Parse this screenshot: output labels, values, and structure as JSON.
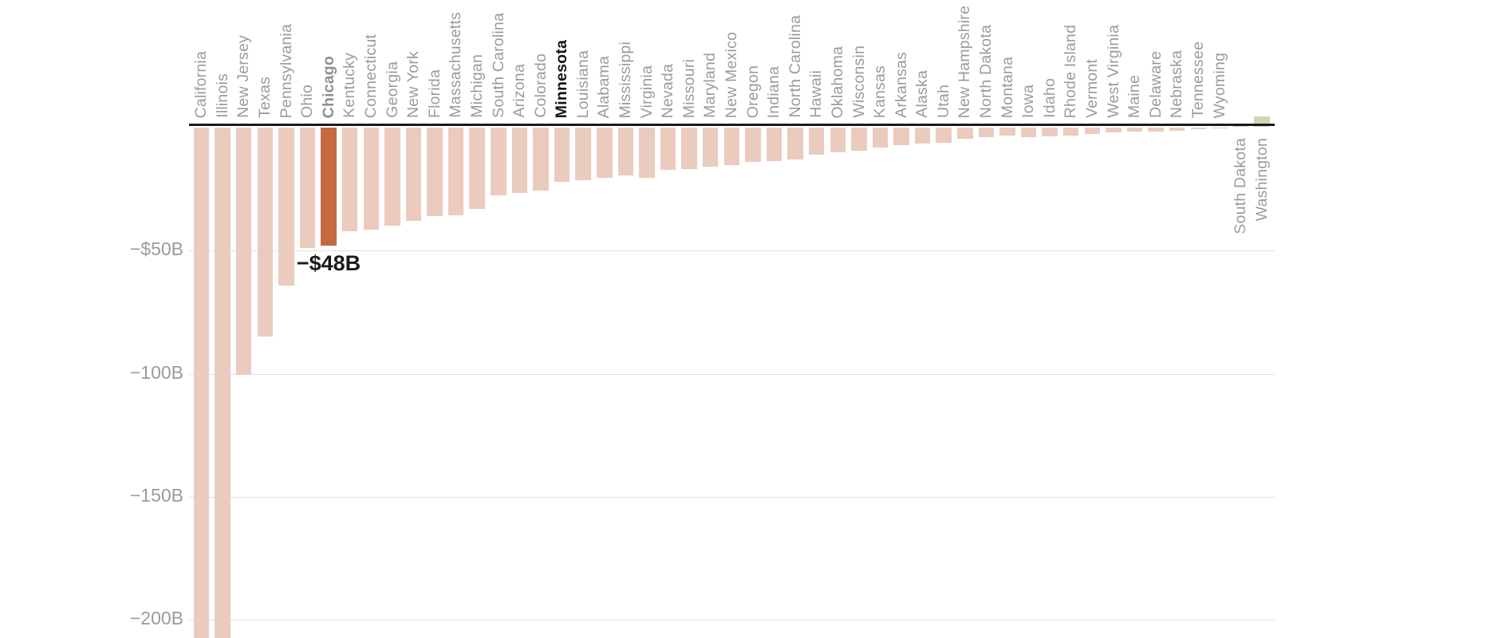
{
  "chart_data": {
    "type": "bar",
    "unit": "USD billions",
    "categories": [
      "California",
      "Illinois",
      "New Jersey",
      "Texas",
      "Pennsylvania",
      "Ohio",
      "Chicago",
      "Kentucky",
      "Connecticut",
      "Georgia",
      "New York",
      "Florida",
      "Massachusetts",
      "Michigan",
      "South Carolina",
      "Arizona",
      "Colorado",
      "Minnesota",
      "Louisiana",
      "Alabama",
      "Mississippi",
      "Virginia",
      "Nevada",
      "Missouri",
      "Maryland",
      "New Mexico",
      "Oregon",
      "Indiana",
      "North Carolina",
      "Hawaii",
      "Oklahoma",
      "Wisconsin",
      "Kansas",
      "Arkansas",
      "Alaska",
      "Utah",
      "New Hampshire",
      "North Dakota",
      "Montana",
      "Iowa",
      "Idaho",
      "Rhode Island",
      "Vermont",
      "West Virginia",
      "Maine",
      "Delaware",
      "Nebraska",
      "Tennessee",
      "Wyoming",
      "South Dakota",
      "Washington"
    ],
    "values": [
      -210,
      -210,
      -100.5,
      -85,
      -64,
      -49,
      -48,
      -42,
      -41.5,
      -40,
      -38,
      -36,
      -35.5,
      -33,
      -27.5,
      -26.5,
      -25.5,
      -22,
      -21.5,
      -20.5,
      -19.5,
      -20.5,
      -17,
      -16.8,
      -16,
      -15.3,
      -14,
      -13.5,
      -13,
      -11,
      -10,
      -9.5,
      -8,
      -7,
      -6.5,
      -6,
      -4.4,
      -3.8,
      -3.2,
      -4.0,
      -3.5,
      -3.3,
      -2.5,
      -1.8,
      -1.5,
      -1.7,
      -1.2,
      -0.5,
      -0.3,
      0.1,
      4.2
    ],
    "highlight_category": "Chicago",
    "bold_categories": [
      "Chicago",
      "Minnesota"
    ],
    "black_label_categories": [
      "Minnesota"
    ],
    "clipped_categories": [
      "California",
      "Illinois"
    ],
    "clipped_note": "bars extend beyond the visible bottom edge of the chart",
    "annotation": {
      "category": "Chicago",
      "text": "−$48B"
    },
    "y_ticks": [
      {
        "value": -50,
        "label": "−$50B"
      },
      {
        "value": -100,
        "label": "−100B"
      },
      {
        "value": -150,
        "label": "−150B"
      },
      {
        "value": -200,
        "label": "−200B"
      }
    ],
    "ylim": [
      -210,
      10
    ],
    "grid": true,
    "legend": false,
    "colors": {
      "bar_negative": "#EBCBBE",
      "bar_highlight": "#C5693F",
      "bar_positive": "#CCD6B9",
      "grid": "#E0E0E0",
      "axis_line": "#1B1B1B",
      "label_gray": "#9B9B9B",
      "label_black": "#141414",
      "highlight_label_gray": "#8F8F8F",
      "annotation_color": "#1A1A1A",
      "background": "#FFFFFF"
    }
  }
}
